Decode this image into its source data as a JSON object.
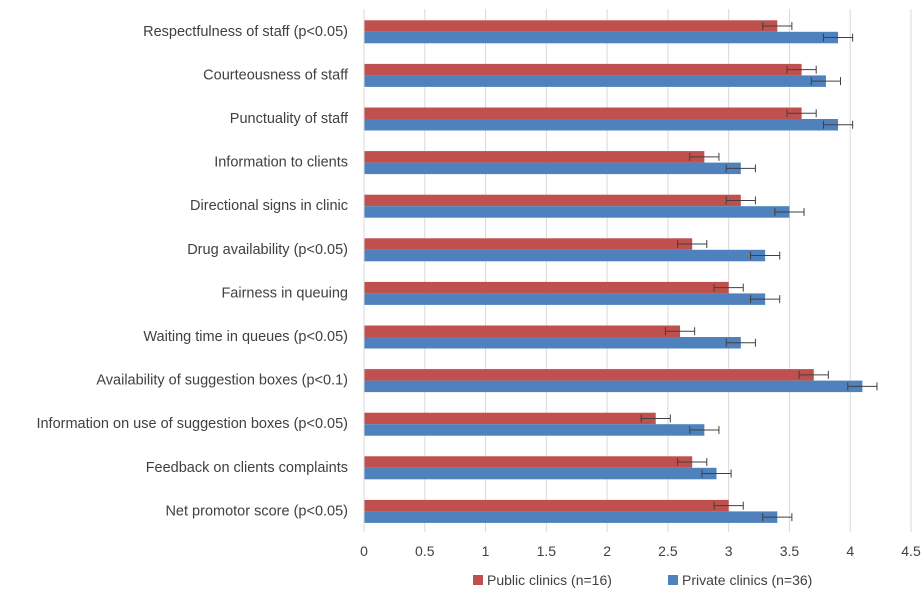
{
  "chart_data": {
    "type": "bar",
    "orientation": "horizontal",
    "categories": [
      "Respectfulness of staff (p<0.05)",
      "Courteousness of staff",
      "Punctuality of staff",
      "Information to clients",
      "Directional signs in clinic",
      "Drug availability (p<0.05)",
      "Fairness in queuing",
      "Waiting time in queues (p<0.05)",
      "Availability of suggestion boxes (p<0.1)",
      "Information on use of suggestion boxes (p<0.05)",
      "Feedback on clients complaints",
      "Net promotor score (p<0.05)"
    ],
    "series": [
      {
        "name": "Public clinics (n=16)",
        "color": "#C0504D",
        "values": [
          3.4,
          3.6,
          3.6,
          2.8,
          3.1,
          2.7,
          3.0,
          2.6,
          3.7,
          2.4,
          2.7,
          3.0
        ],
        "error": [
          0.12,
          0.12,
          0.12,
          0.12,
          0.12,
          0.12,
          0.12,
          0.12,
          0.12,
          0.12,
          0.12,
          0.12
        ]
      },
      {
        "name": "Private clinics (n=36)",
        "color": "#4F81BD",
        "values": [
          3.9,
          3.8,
          3.9,
          3.1,
          3.5,
          3.3,
          3.3,
          3.1,
          4.1,
          2.8,
          2.9,
          3.4
        ],
        "error": [
          0.12,
          0.12,
          0.12,
          0.12,
          0.12,
          0.12,
          0.12,
          0.12,
          0.12,
          0.12,
          0.12,
          0.12
        ]
      }
    ],
    "xlim": [
      0,
      4.5
    ],
    "xticks": [
      "0",
      "0.5",
      "1",
      "1.5",
      "2",
      "2.5",
      "3",
      "3.5",
      "4",
      "4.5"
    ],
    "grid": "vertical",
    "legend": "bottom"
  }
}
